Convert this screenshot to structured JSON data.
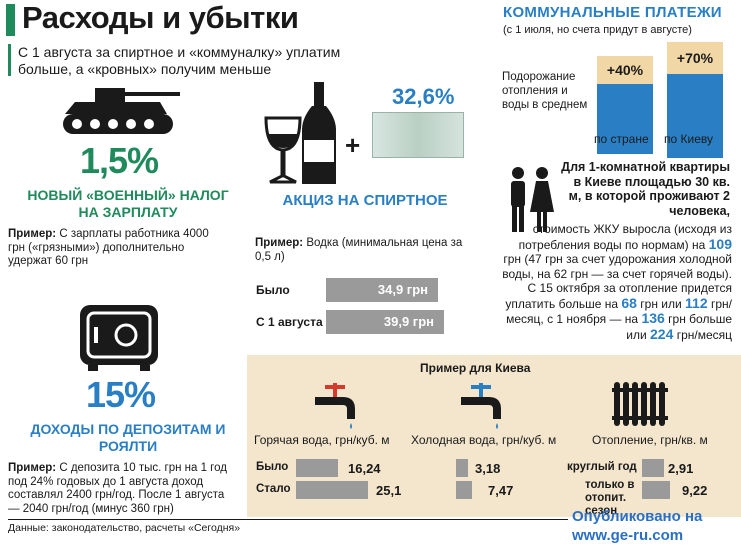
{
  "header": {
    "title": "Расходы и убытки",
    "lead": "С 1 августа за спиртное и «коммуналку» уплатим больше, а «кровных» получим меньше"
  },
  "utilities": {
    "title": "КОММУНАЛЬНЫЕ ПЛАТЕЖИ",
    "subtitle": "(с 1 июля, но счета придут в августе)",
    "description": "Подорожание отопления и воды в среднем",
    "bars": [
      {
        "label": "по стране",
        "value_label": "+40%",
        "value": 40
      },
      {
        "label": "по Киеву",
        "value_label": "+70%",
        "value": 70
      }
    ]
  },
  "military": {
    "percent": "1,5%",
    "heading": "НОВЫЙ «ВОЕННЫЙ» НАЛОГ НА ЗАРПЛАТУ",
    "example_label": "Пример:",
    "example_text": " С зарплаты работника 4000 грн («грязными») дополнительно удержат 60 грн"
  },
  "excise": {
    "percent": "32,6%",
    "plus": "+",
    "heading": "АКЦИЗ НА СПИРТНОЕ",
    "example_label": "Пример:",
    "example_text": " Водка (минимальная цена за 0,5 л)",
    "before_label": "Было",
    "after_label": "С 1 августа",
    "before_value": "34,9 грн",
    "after_value": "39,9 грн"
  },
  "deposit": {
    "percent": "15%",
    "heading": "ДОХОДЫ ПО ДЕПОЗИТАМ И РОЯЛТИ",
    "example_label": "Пример:",
    "example_text": " С депозита 10 тыс. грн на 1 год под 24% годовых до 1 августа доход составлял 2400 грн/год. После 1 августа — 2040 грн/год (минус 360 грн)"
  },
  "apartment": {
    "bold_text": "Для 1-комнатной квартиры в Киеве площадью 30 кв. м, в которой проживают 2 человека,",
    "t1": "стоимость ЖКУ выросла (исходя из потребления воды по нормам) на ",
    "v1": "109",
    "t2": " грн (47 грн за счет удорожания холодной воды, на 62 грн — за счет горячей воды). С 15 октября за отопление придется уплатить больше на ",
    "v2": "68",
    "t3": " грн или ",
    "v3": "112",
    "t4": " грн/месяц, с 1 ноября — на ",
    "v4": "136",
    "t5": " грн больше или ",
    "v5": "224",
    "t6": " грн/месяц"
  },
  "kyiv": {
    "title": "Пример для Киева",
    "hot_label": "Горячая вода, грн/куб. м",
    "cold_label": "Холодная вода, грн/куб. м",
    "heat_label": "Отопление, грн/кв. м",
    "before_label": "Было",
    "after_label": "Стало",
    "year_label": "круглый год",
    "season_label": "только в отопит. сезон",
    "hot_before": "16,24",
    "hot_after": "25,1",
    "cold_before": "3,18",
    "cold_after": "7,47",
    "heat_year": "2,91",
    "heat_season": "9,22"
  },
  "footer": {
    "source": "Данные: законодательство, расчеты «Сегодня»",
    "published_1": "Опубликовано на",
    "published_2": "www.ge-ru.com"
  },
  "colors": {
    "green": "#1f8a5b",
    "blue": "#2a7fc4",
    "beige": "#f3e6cd",
    "bar_gray": "#9a9a9a"
  },
  "icons": [
    "tank-icon",
    "wine-glass-icon",
    "bottle-icon",
    "banknote-icon",
    "safe-icon",
    "people-icon",
    "hot-tap-icon",
    "cold-tap-icon",
    "radiator-icon"
  ]
}
